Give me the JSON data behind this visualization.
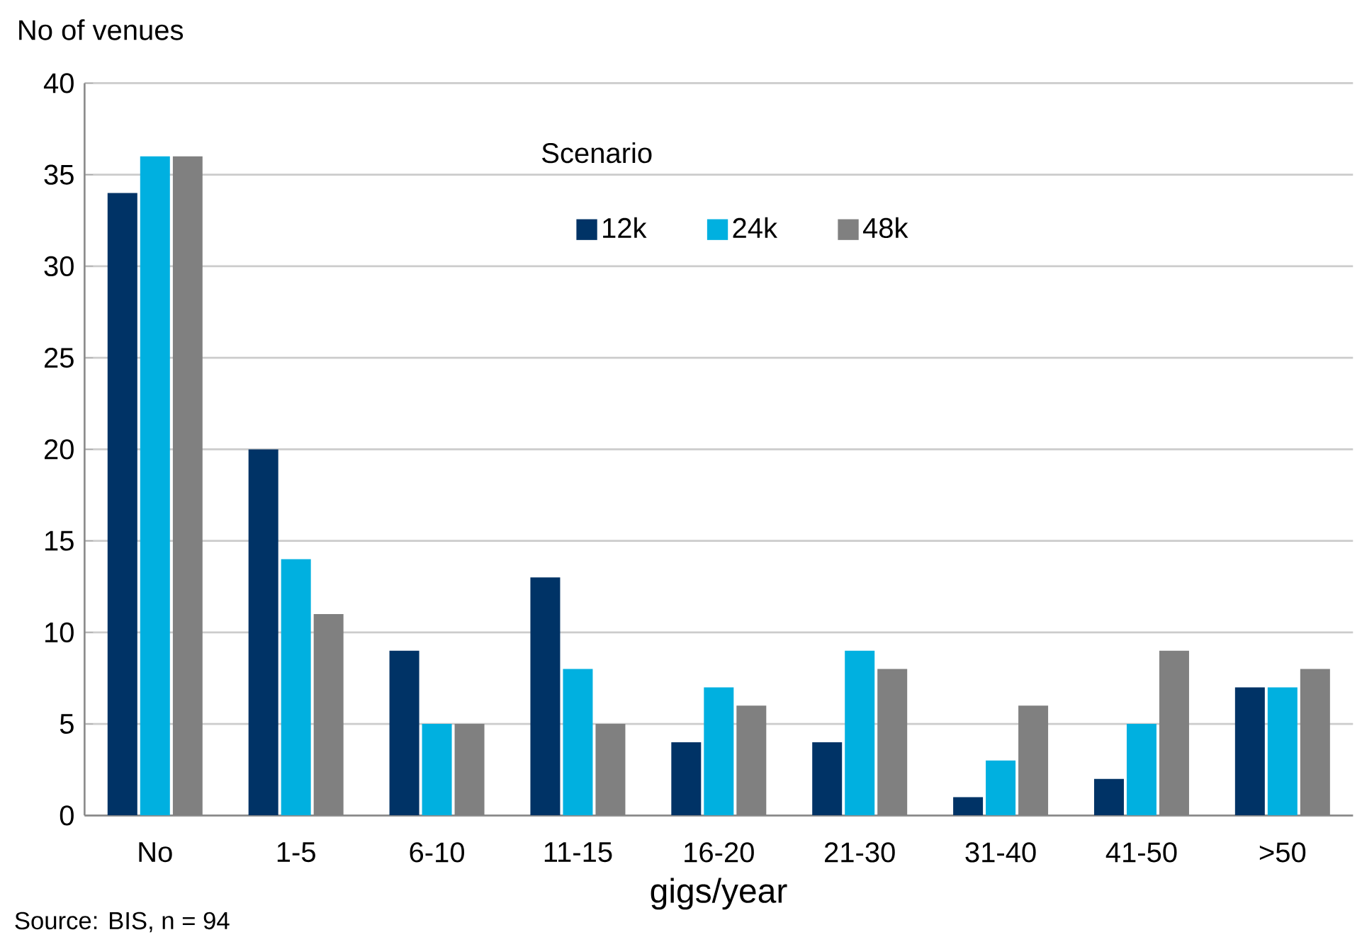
{
  "chart_data": {
    "type": "bar",
    "ylabel": "No of venues",
    "xlabel": "gigs/year",
    "legend_title": "Scenario",
    "legend": "top",
    "grid": "y",
    "categories": [
      "No",
      "1-5",
      "6-10",
      "11-15",
      "16-20",
      "21-30",
      "31-40",
      "41-50",
      ">50"
    ],
    "ylim": [
      0,
      40
    ],
    "yticks": [
      0,
      5,
      10,
      15,
      20,
      25,
      30,
      35,
      40
    ],
    "series": [
      {
        "name": "12k",
        "color": "#003366",
        "values": [
          34,
          20,
          9,
          13,
          4,
          4,
          1,
          2,
          7
        ]
      },
      {
        "name": "24k",
        "color": "#00b0e0",
        "values": [
          36,
          14,
          5,
          8,
          7,
          9,
          3,
          5,
          7
        ]
      },
      {
        "name": "48k",
        "color": "#808080",
        "values": [
          36,
          11,
          5,
          5,
          6,
          8,
          6,
          9,
          8
        ]
      }
    ],
    "annotations": [
      "Source: BIS, n = 94"
    ]
  }
}
